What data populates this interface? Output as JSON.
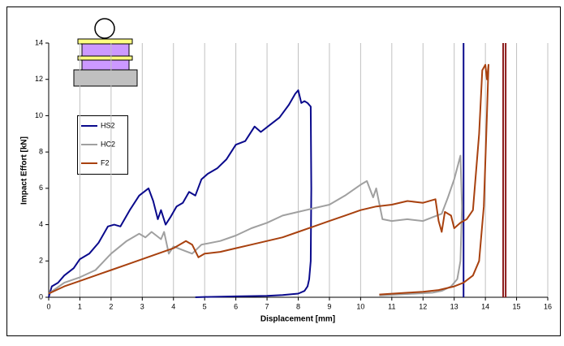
{
  "chart_data": {
    "type": "line",
    "xlabel": "Displacement [mm]",
    "ylabel": "Impact Effort [kN]",
    "xlim": [
      0,
      16
    ],
    "ylim": [
      0,
      14
    ],
    "xticks": [
      0,
      1,
      2,
      3,
      4,
      5,
      6,
      7,
      8,
      9,
      10,
      11,
      12,
      13,
      14,
      15,
      16
    ],
    "yticks": [
      0,
      2,
      4,
      6,
      8,
      10,
      12,
      14
    ],
    "grid": "x",
    "legend": "upper left",
    "series": [
      {
        "name": "HS2",
        "color": "#0a0a8c",
        "x": [
          0,
          0.1,
          0.3,
          0.5,
          0.8,
          1,
          1.3,
          1.6,
          1.9,
          2.1,
          2.3,
          2.6,
          2.9,
          3.2,
          3.35,
          3.5,
          3.6,
          3.75,
          3.9,
          4.1,
          4.3,
          4.5,
          4.7,
          4.9,
          5.1,
          5.4,
          5.7,
          6,
          6.3,
          6.6,
          6.8,
          7.1,
          7.4,
          7.7,
          7.9,
          8,
          8.1,
          8.2,
          8.3,
          8.4,
          8.42,
          8.4,
          8.35,
          8.3,
          8.2,
          8,
          7.5,
          7,
          6,
          5,
          4.7
        ],
        "values": [
          0,
          0.6,
          0.8,
          1.2,
          1.6,
          2.1,
          2.4,
          3,
          3.9,
          4.0,
          3.9,
          4.8,
          5.6,
          6,
          5.3,
          4.3,
          4.8,
          4.0,
          4.4,
          5,
          5.2,
          5.8,
          5.6,
          6.5,
          6.8,
          7.1,
          7.6,
          8.4,
          8.6,
          9.4,
          9.1,
          9.5,
          9.9,
          10.6,
          11.2,
          11.4,
          10.7,
          10.8,
          10.7,
          10.5,
          6,
          2,
          1,
          0.6,
          0.35,
          0.2,
          0.12,
          0.08,
          0.05,
          0.02,
          0
        ]
      },
      {
        "name": "HC2",
        "color": "#a0a0a0",
        "x": [
          0,
          0.5,
          1,
          1.5,
          2,
          2.5,
          2.9,
          3.1,
          3.3,
          3.6,
          3.7,
          3.85,
          4,
          4.3,
          4.6,
          4.9,
          5.5,
          6,
          6.5,
          7,
          7.5,
          8,
          8.5,
          9,
          9.5,
          10,
          10.2,
          10.4,
          10.5,
          10.7,
          11,
          11.5,
          12,
          12.3,
          12.6,
          12.8,
          13,
          13.2,
          13.25,
          13.2,
          13.1,
          12.9,
          12.6,
          12.3,
          11.5,
          10.6
        ],
        "values": [
          0.2,
          0.8,
          1.1,
          1.5,
          2.4,
          3.1,
          3.5,
          3.3,
          3.6,
          3.2,
          3.6,
          2.4,
          2.8,
          2.6,
          2.4,
          2.9,
          3.1,
          3.4,
          3.8,
          4.1,
          4.5,
          4.7,
          4.9,
          5.1,
          5.6,
          6.2,
          6.4,
          5.5,
          6.0,
          4.3,
          4.2,
          4.3,
          4.2,
          4.4,
          4.6,
          5.5,
          6.5,
          7.8,
          5,
          2,
          1,
          0.6,
          0.35,
          0.25,
          0.18,
          0.1
        ]
      },
      {
        "name": "F2",
        "color": "#a8410f",
        "x": [
          0,
          0.5,
          1,
          1.5,
          2,
          2.5,
          3,
          3.5,
          4,
          4.4,
          4.6,
          4.8,
          5,
          5.5,
          6,
          6.5,
          7,
          7.5,
          8,
          8.5,
          9,
          9.5,
          10,
          10.5,
          11,
          11.5,
          12,
          12.4,
          12.5,
          12.6,
          12.7,
          12.9,
          13,
          13.2,
          13.4,
          13.6,
          13.8,
          13.9,
          14,
          14.05,
          14.1,
          14.05,
          13.95,
          13.8,
          13.6,
          13.3,
          13,
          12.5,
          12,
          11.5,
          10.6
        ],
        "values": [
          0.2,
          0.6,
          0.9,
          1.2,
          1.5,
          1.8,
          2.1,
          2.4,
          2.7,
          3.1,
          2.9,
          2.2,
          2.4,
          2.5,
          2.7,
          2.9,
          3.1,
          3.3,
          3.6,
          3.9,
          4.2,
          4.5,
          4.8,
          5.0,
          5.1,
          5.3,
          5.2,
          5.4,
          4.2,
          3.6,
          4.7,
          4.5,
          3.8,
          4.1,
          4.3,
          4.8,
          9,
          12.5,
          12.8,
          12.0,
          12.8,
          10,
          5,
          2,
          1.2,
          0.8,
          0.6,
          0.4,
          0.3,
          0.25,
          0.15
        ]
      }
    ],
    "vlines": [
      {
        "x": 13.3,
        "color": "#0a0a8c"
      },
      {
        "x": 14.57,
        "color": "#8b1a1a"
      },
      {
        "x": 14.65,
        "color": "#8b1a1a"
      }
    ]
  }
}
